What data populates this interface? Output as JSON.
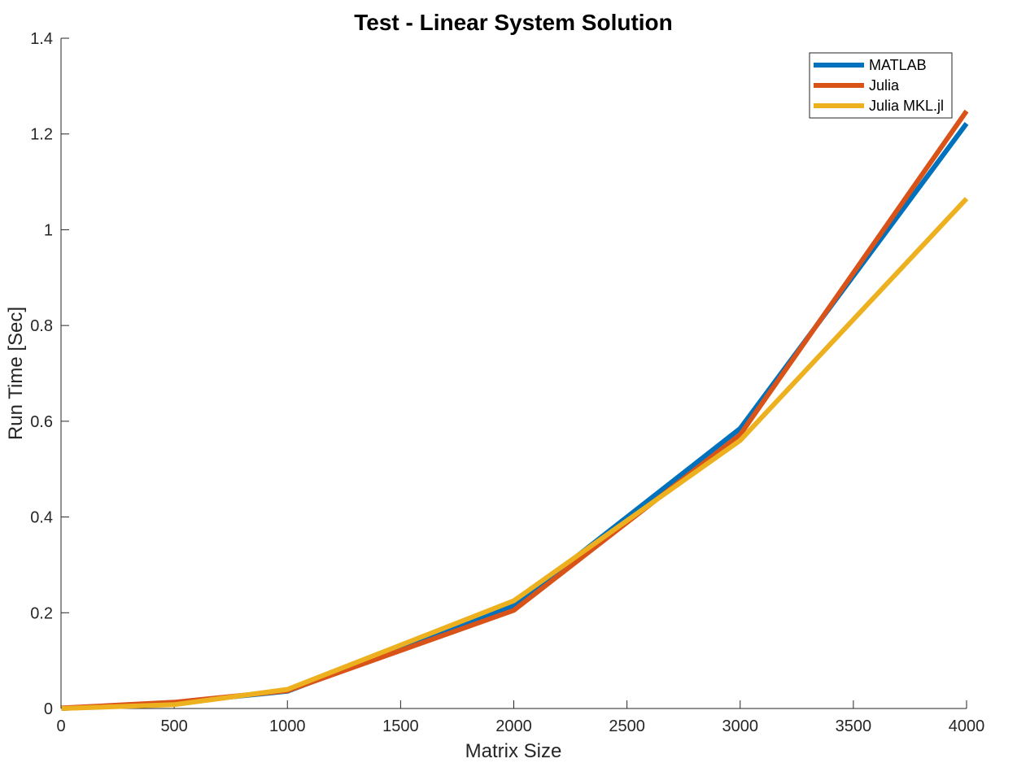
{
  "chart_data": {
    "type": "line",
    "title": "Test - Linear System Solution",
    "xlabel": "Matrix Size",
    "ylabel": "Run Time  [Sec]",
    "xlim": [
      0,
      4000
    ],
    "ylim": [
      0,
      1.4
    ],
    "xticks": [
      0,
      500,
      1000,
      1500,
      2000,
      2500,
      3000,
      3500,
      4000
    ],
    "xtick_labels": [
      "0",
      "500",
      "1000",
      "1500",
      "2000",
      "2500",
      "3000",
      "3500",
      "4000"
    ],
    "yticks": [
      0,
      0.2,
      0.4,
      0.6,
      0.8,
      1.0,
      1.2,
      1.4
    ],
    "ytick_labels": [
      "0",
      "0.2",
      "0.4",
      "0.6",
      "0.8",
      "1",
      "1.2",
      "1.4"
    ],
    "grid": false,
    "legend_position": "top-right",
    "x": [
      2,
      500,
      1000,
      2000,
      3000,
      4000
    ],
    "series": [
      {
        "name": "MATLAB",
        "color": "#0072BD",
        "values": [
          0.0,
          0.012,
          0.036,
          0.215,
          0.585,
          1.222
        ]
      },
      {
        "name": "Julia",
        "color": "#D95319",
        "values": [
          0.001,
          0.013,
          0.037,
          0.205,
          0.572,
          1.248
        ]
      },
      {
        "name": "Julia MKL.jl",
        "color": "#EDB120",
        "values": [
          0.0,
          0.008,
          0.04,
          0.225,
          0.56,
          1.065
        ]
      }
    ]
  }
}
